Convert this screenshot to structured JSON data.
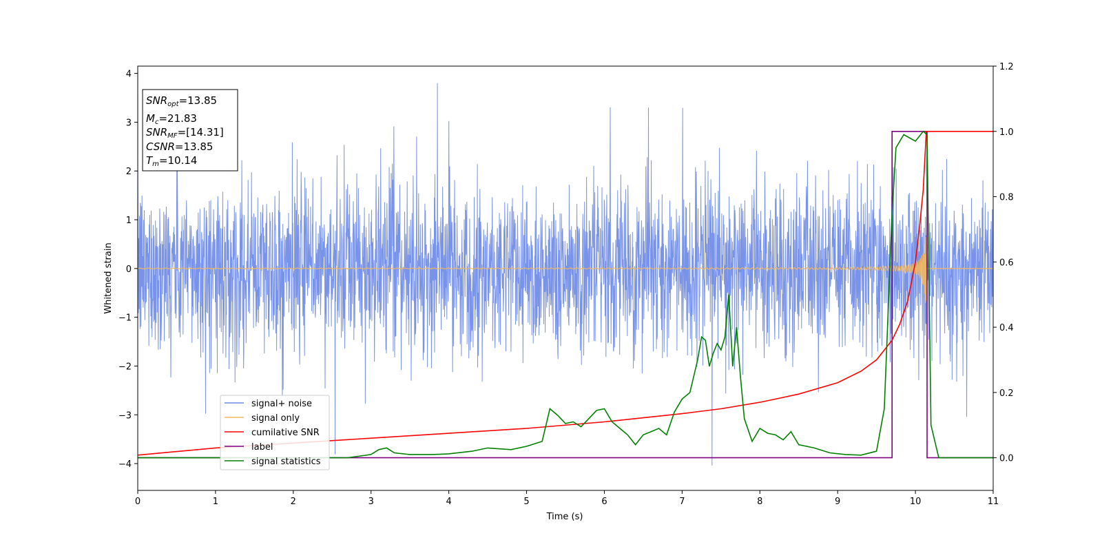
{
  "chart_data": {
    "type": "line",
    "xlabel": "Time (s)",
    "ylabel": "Whitened strain",
    "xlim": [
      0,
      11
    ],
    "ylim_left": [
      -4.55,
      4.15
    ],
    "ylim_right": [
      -0.1,
      1.2
    ],
    "x_ticks": [
      "0",
      "1",
      "2",
      "3",
      "4",
      "5",
      "6",
      "7",
      "8",
      "9",
      "10",
      "11"
    ],
    "y_ticks_left": [
      "−4",
      "−3",
      "−2",
      "−1",
      "0",
      "1",
      "2",
      "3",
      "4"
    ],
    "y_ticks_left_values": [
      -4,
      -3,
      -2,
      -1,
      0,
      1,
      2,
      3,
      4
    ],
    "y_ticks_right": [
      "0.0",
      "0.2",
      "0.4",
      "0.6",
      "0.8",
      "1.0",
      "1.2"
    ],
    "y_ticks_right_values": [
      0.0,
      0.2,
      0.4,
      0.6,
      0.8,
      1.0,
      1.2
    ],
    "legend_position": "lower-left",
    "series": [
      {
        "name": "signal+ noise",
        "color": "#6a87e6",
        "axis": "left",
        "description_values": "noise, std ~0.9, peaks to ±3.7"
      },
      {
        "name": "signal only",
        "color": "#f4b75c",
        "axis": "left"
      },
      {
        "name": "cumilative SNR",
        "color": "#ff0000",
        "axis": "right",
        "x": [
          0,
          1,
          2,
          3,
          4,
          5,
          6,
          7,
          7.5,
          8,
          8.5,
          9,
          9.3,
          9.5,
          9.7,
          9.8,
          9.9,
          10.0,
          10.05,
          10.1,
          10.14,
          11
        ],
        "y": [
          0.008,
          0.03,
          0.045,
          0.06,
          0.075,
          0.09,
          0.11,
          0.135,
          0.15,
          0.17,
          0.195,
          0.23,
          0.265,
          0.3,
          0.36,
          0.41,
          0.48,
          0.6,
          0.7,
          0.82,
          1.0,
          1.0
        ]
      },
      {
        "name": "label",
        "color": "#800080",
        "axis": "right",
        "x": [
          0,
          9.7,
          9.7,
          10.15,
          10.15,
          11
        ],
        "y": [
          0,
          0,
          1,
          1,
          0,
          0
        ]
      },
      {
        "name": "signal statistics",
        "color": "#008000",
        "axis": "right",
        "x": [
          0,
          2.7,
          3.0,
          3.1,
          3.2,
          3.3,
          3.5,
          3.8,
          4.0,
          4.3,
          4.5,
          4.8,
          5.0,
          5.2,
          5.3,
          5.4,
          5.5,
          5.6,
          5.7,
          5.8,
          5.9,
          6.0,
          6.1,
          6.2,
          6.3,
          6.4,
          6.5,
          6.6,
          6.7,
          6.8,
          6.9,
          7.0,
          7.1,
          7.2,
          7.25,
          7.3,
          7.35,
          7.4,
          7.45,
          7.5,
          7.55,
          7.6,
          7.65,
          7.7,
          7.75,
          7.8,
          7.9,
          8.0,
          8.1,
          8.2,
          8.3,
          8.4,
          8.5,
          8.7,
          8.9,
          9.1,
          9.3,
          9.5,
          9.6,
          9.7,
          9.75,
          9.85,
          10.0,
          10.1,
          10.15,
          10.2,
          10.3,
          11
        ],
        "y": [
          0,
          0,
          0.01,
          0.025,
          0.03,
          0.015,
          0.01,
          0.01,
          0.012,
          0.02,
          0.03,
          0.025,
          0.035,
          0.05,
          0.15,
          0.13,
          0.105,
          0.11,
          0.095,
          0.12,
          0.145,
          0.15,
          0.11,
          0.09,
          0.07,
          0.04,
          0.07,
          0.08,
          0.09,
          0.07,
          0.14,
          0.18,
          0.2,
          0.3,
          0.37,
          0.36,
          0.28,
          0.32,
          0.35,
          0.33,
          0.37,
          0.5,
          0.28,
          0.4,
          0.25,
          0.12,
          0.05,
          0.09,
          0.075,
          0.07,
          0.055,
          0.08,
          0.04,
          0.03,
          0.015,
          0.01,
          0.008,
          0.02,
          0.15,
          0.75,
          0.95,
          0.99,
          0.97,
          1.0,
          0.99,
          0.1,
          0.0,
          0.0
        ]
      }
    ]
  },
  "legend": {
    "items": [
      {
        "label": "signal+ noise",
        "color": "#6a87e6"
      },
      {
        "label": "signal only",
        "color": "#f4b75c"
      },
      {
        "label": "cumilative SNR",
        "color": "#ff0000"
      },
      {
        "label": "label",
        "color": "#800080"
      },
      {
        "label": "signal statistics",
        "color": "#008000"
      }
    ]
  },
  "annotation": {
    "snr_opt": {
      "sym": "SNR",
      "sub": "opt",
      "value": "=13.85"
    },
    "mc": {
      "sym": "M",
      "sub": "c",
      "value": "=21.83"
    },
    "snr_mf": {
      "sym": "SNR",
      "sub": "MF",
      "value": "=[14.31]"
    },
    "csnr": {
      "sym": "CSNR",
      "sub": "",
      "value": "=13.85"
    },
    "tm": {
      "sym": "T",
      "sub": "m",
      "value": "=10.14"
    }
  },
  "colors": {
    "noise": "#6a87e6",
    "signal": "#f4b75c",
    "snr": "#ff0000",
    "label": "#800080",
    "stat": "#008000"
  }
}
